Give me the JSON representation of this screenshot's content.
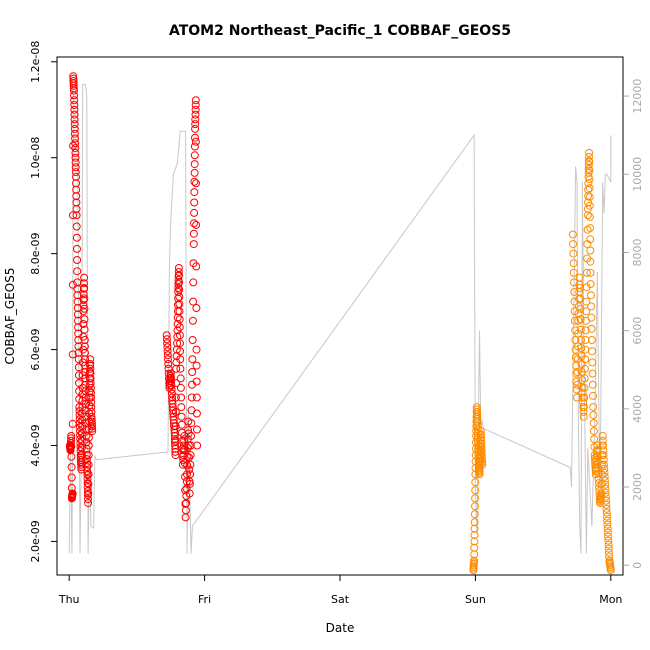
{
  "chart_data": {
    "type": "scatter",
    "title": "ATOM2 Northeast_Pacific_1 COBBAF_GEOS5",
    "xlabel": "Date",
    "ylabel": "COBBAF_GEOS5",
    "x_ticks": [
      "Thu",
      "Fri",
      "Sat",
      "Sun",
      "Mon"
    ],
    "x_tick_days": [
      0,
      1,
      2,
      3,
      4
    ],
    "xlim": [
      -0.09,
      4.09
    ],
    "ylim": [
      1.3e-09,
      1.21e-08
    ],
    "y_ticks": [
      2e-09,
      4e-09,
      6e-09,
      8e-09,
      1e-08,
      1.2e-08
    ],
    "y_tick_labels": [
      "2.0e-09",
      "4.0e-09",
      "6.0e-09",
      "8.0e-09",
      "1.0e-08",
      "1.2e-08"
    ],
    "y2_ticks": [
      0,
      2000,
      4000,
      6000,
      8000,
      10000,
      12000
    ],
    "y2_tick_labels": [
      "0",
      "2000",
      "4000",
      "6000",
      "8000",
      "10000",
      "12000"
    ],
    "y2lim": [
      -250,
      13000
    ],
    "colors": {
      "red_series": "#ff0000",
      "orange_series": "#ff8c00",
      "altitude_line": "#c8c8c8",
      "axis": "#000000",
      "right_axis": "#aaaaaa"
    },
    "series": [
      {
        "color": "red",
        "points": [
          [
            0.005,
            4e-09
          ],
          [
            0.01,
            3.9e-09
          ],
          [
            0.015,
            4.2e-09
          ],
          [
            0.02,
            2.9e-09
          ],
          [
            0.025,
            3e-09
          ],
          [
            0.03,
            1.17e-08
          ],
          [
            0.035,
            1.14e-08
          ],
          [
            0.04,
            1.08e-08
          ],
          [
            0.045,
            1.02e-08
          ],
          [
            0.05,
            9.6e-09
          ],
          [
            0.055,
            8.8e-09
          ],
          [
            0.06,
            7.4e-09
          ],
          [
            0.065,
            6.6e-09
          ],
          [
            0.07,
            5.8e-09
          ],
          [
            0.075,
            4.8e-09
          ],
          [
            0.08,
            4.3e-09
          ],
          [
            0.085,
            3.8e-09
          ],
          [
            0.09,
            3.5e-09
          ],
          [
            0.095,
            4.4e-09
          ],
          [
            0.1,
            5.2e-09
          ],
          [
            0.105,
            6.8e-09
          ],
          [
            0.11,
            7.5e-09
          ],
          [
            0.115,
            6.2e-09
          ],
          [
            0.12,
            5.4e-09
          ],
          [
            0.125,
            4.6e-09
          ],
          [
            0.13,
            3.8e-09
          ],
          [
            0.135,
            3.3e-09
          ],
          [
            0.14,
            2.8e-09
          ],
          [
            0.145,
            4e-09
          ],
          [
            0.15,
            5e-09
          ],
          [
            0.155,
            5.8e-09
          ],
          [
            0.16,
            5.2e-09
          ],
          [
            0.165,
            4.6e-09
          ],
          [
            0.17,
            4.3e-09
          ],
          [
            0.72,
            6.3e-09
          ],
          [
            0.73,
            5.8e-09
          ],
          [
            0.74,
            5.2e-09
          ],
          [
            0.75,
            5.5e-09
          ],
          [
            0.76,
            5e-09
          ],
          [
            0.77,
            4.6e-09
          ],
          [
            0.78,
            4.2e-09
          ],
          [
            0.785,
            3.8e-09
          ],
          [
            0.79,
            5.6e-09
          ],
          [
            0.8,
            6.4e-09
          ],
          [
            0.805,
            7.2e-09
          ],
          [
            0.81,
            7.7e-09
          ],
          [
            0.815,
            6.8e-09
          ],
          [
            0.82,
            5.8e-09
          ],
          [
            0.83,
            4.6e-09
          ],
          [
            0.84,
            3.6e-09
          ],
          [
            0.85,
            4.2e-09
          ],
          [
            0.86,
            2.5e-09
          ],
          [
            0.87,
            3.4e-09
          ],
          [
            0.88,
            4.5e-09
          ],
          [
            0.89,
            3e-09
          ],
          [
            0.9,
            4.2e-09
          ],
          [
            0.91,
            5.8e-09
          ],
          [
            0.92,
            8.2e-09
          ],
          [
            0.925,
            9.5e-09
          ],
          [
            0.93,
            1.06e-08
          ],
          [
            0.935,
            1.12e-08
          ],
          [
            0.94,
            6e-09
          ],
          [
            0.945,
            4e-09
          ]
        ]
      },
      {
        "color": "orange",
        "points": [
          [
            2.985,
            1.4e-09
          ],
          [
            2.99,
            1.6e-09
          ],
          [
            2.995,
            2.4e-09
          ],
          [
            3.0,
            3.4e-09
          ],
          [
            3.005,
            4.2e-09
          ],
          [
            3.01,
            4.8e-09
          ],
          [
            3.015,
            4.5e-09
          ],
          [
            3.02,
            4e-09
          ],
          [
            3.025,
            3.6e-09
          ],
          [
            3.03,
            3.4e-09
          ],
          [
            3.035,
            3.8e-09
          ],
          [
            3.04,
            4.3e-09
          ],
          [
            3.045,
            3.9e-09
          ],
          [
            3.05,
            3.6e-09
          ],
          [
            3.72,
            8.4e-09
          ],
          [
            3.73,
            7.2e-09
          ],
          [
            3.74,
            6e-09
          ],
          [
            3.75,
            5e-09
          ],
          [
            3.76,
            6.6e-09
          ],
          [
            3.77,
            7.5e-09
          ],
          [
            3.78,
            6.2e-09
          ],
          [
            3.79,
            5.2e-09
          ],
          [
            3.8,
            4.6e-09
          ],
          [
            3.81,
            5.8e-09
          ],
          [
            3.82,
            7e-09
          ],
          [
            3.83,
            8.8e-09
          ],
          [
            3.835,
            9.6e-09
          ],
          [
            3.84,
            1.01e-08
          ],
          [
            3.845,
            9e-09
          ],
          [
            3.85,
            7.6e-09
          ],
          [
            3.86,
            6.2e-09
          ],
          [
            3.87,
            4.8e-09
          ],
          [
            3.88,
            3.8e-09
          ],
          [
            3.89,
            3.4e-09
          ],
          [
            3.9,
            4e-09
          ],
          [
            3.91,
            3.3e-09
          ],
          [
            3.92,
            2.8e-09
          ],
          [
            3.93,
            3e-09
          ],
          [
            3.94,
            4.2e-09
          ],
          [
            3.95,
            3.6e-09
          ],
          [
            3.96,
            3.1e-09
          ],
          [
            3.97,
            2.6e-09
          ],
          [
            3.98,
            2.1e-09
          ],
          [
            3.99,
            1.6e-09
          ],
          [
            4.0,
            1.4e-09
          ]
        ]
      }
    ],
    "altitude_line": [
      [
        0.0,
        300
      ],
      [
        0.01,
        3200
      ],
      [
        0.02,
        300
      ],
      [
        0.025,
        3000
      ],
      [
        0.03,
        12300
      ],
      [
        0.06,
        12200
      ],
      [
        0.08,
        300
      ],
      [
        0.09,
        3000
      ],
      [
        0.1,
        12300
      ],
      [
        0.12,
        12300
      ],
      [
        0.13,
        12000
      ],
      [
        0.14,
        300
      ],
      [
        0.15,
        2700
      ],
      [
        0.16,
        1000
      ],
      [
        0.18,
        950
      ],
      [
        0.19,
        2800
      ],
      [
        0.2,
        2700
      ],
      [
        0.73,
        2900
      ],
      [
        0.74,
        7600
      ],
      [
        0.75,
        8800
      ],
      [
        0.77,
        10000
      ],
      [
        0.8,
        10300
      ],
      [
        0.82,
        11100
      ],
      [
        0.86,
        11100
      ],
      [
        0.87,
        300
      ],
      [
        0.88,
        4000
      ],
      [
        0.89,
        2000
      ],
      [
        0.9,
        300
      ],
      [
        0.91,
        1000
      ],
      [
        2.99,
        11000
      ],
      [
        3.0,
        2000
      ],
      [
        3.01,
        800
      ],
      [
        3.02,
        3200
      ],
      [
        3.03,
        6000
      ],
      [
        3.04,
        3500
      ],
      [
        3.05,
        3700
      ],
      [
        3.06,
        3500
      ],
      [
        3.7,
        2500
      ],
      [
        3.71,
        2000
      ],
      [
        3.74,
        10200
      ],
      [
        3.75,
        9800
      ],
      [
        3.76,
        4000
      ],
      [
        3.77,
        1000
      ],
      [
        3.78,
        300
      ],
      [
        3.79,
        9800
      ],
      [
        3.8,
        6000
      ],
      [
        3.82,
        300
      ],
      [
        3.83,
        3000
      ],
      [
        3.86,
        1000
      ],
      [
        3.88,
        3500
      ],
      [
        3.9,
        7500
      ],
      [
        3.92,
        1500
      ],
      [
        3.94,
        9800
      ],
      [
        3.95,
        9000
      ],
      [
        3.96,
        10000
      ],
      [
        3.97,
        10000
      ],
      [
        4.0,
        9800
      ],
      [
        4.0,
        11000
      ]
    ]
  }
}
